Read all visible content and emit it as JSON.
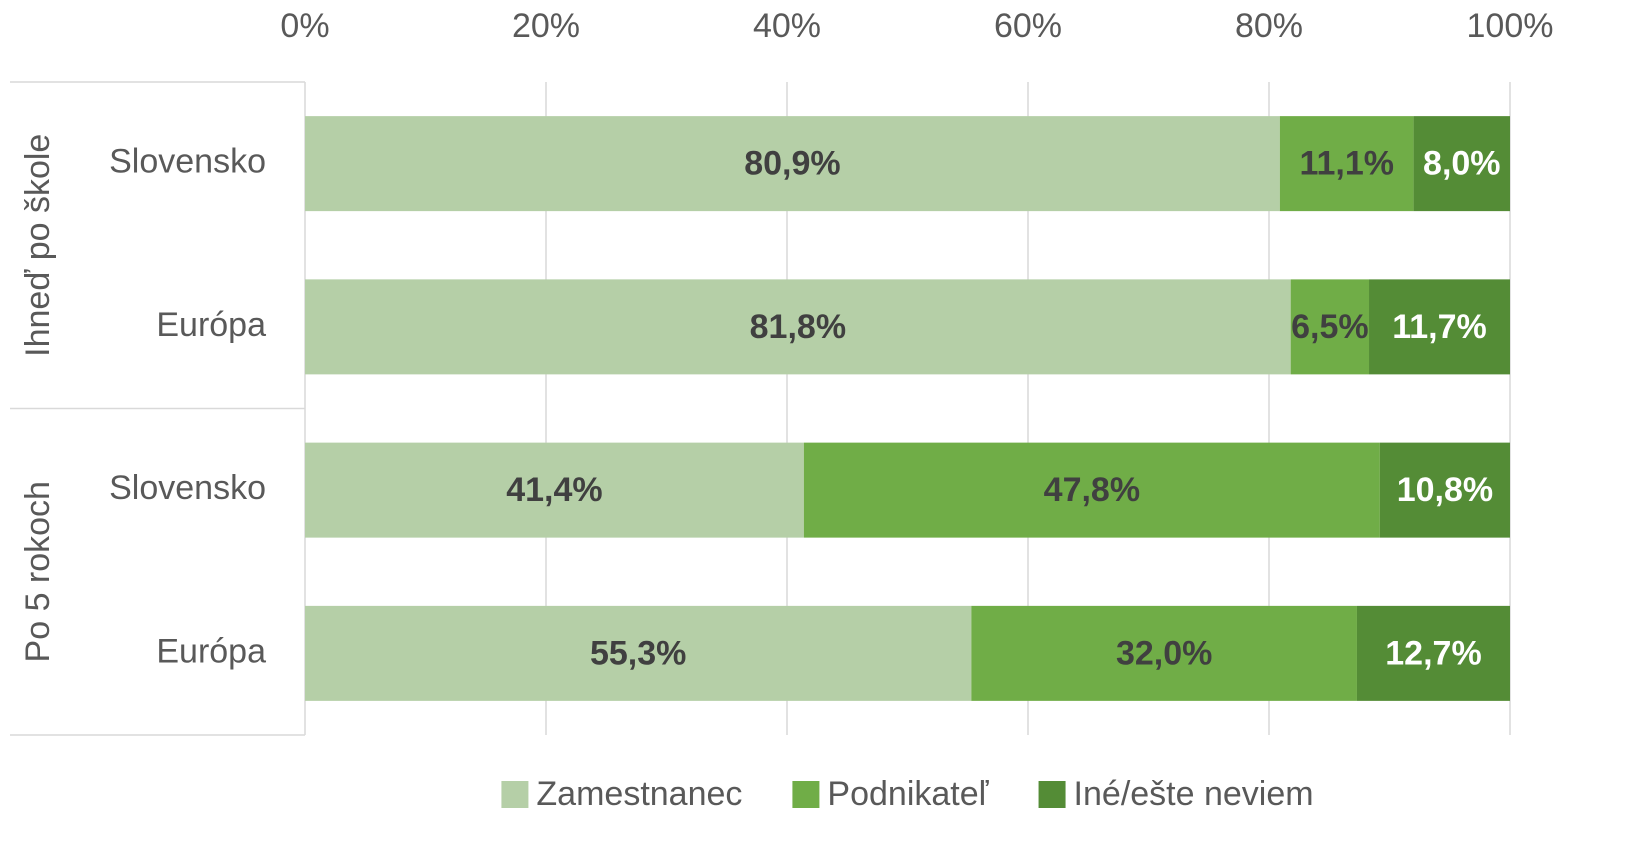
{
  "chart_data": {
    "type": "stacked-bar-horizontal",
    "groups": [
      {
        "label": "Ihneď po škole",
        "categories": [
          "Slovensko",
          "Európa"
        ]
      },
      {
        "label": "Po 5 rokoch",
        "categories": [
          "Slovensko",
          "Európa"
        ]
      }
    ],
    "series": [
      {
        "name": "Zamestnanec",
        "color": "#b5cfa7",
        "label_color": "#404040",
        "values": [
          80.9,
          81.8,
          41.4,
          55.3
        ],
        "value_labels": [
          "80,9%",
          "81,8%",
          "41,4%",
          "55,3%"
        ]
      },
      {
        "name": "Podnikateľ",
        "color": "#70ad47",
        "label_color": "#404040",
        "values": [
          11.1,
          6.5,
          47.8,
          32.0
        ],
        "value_labels": [
          "11,1%",
          "6,5%",
          "47,8%",
          "32,0%"
        ]
      },
      {
        "name": "Iné/ešte neviem",
        "color": "#548c36",
        "label_color": "#ffffff",
        "values": [
          8.0,
          11.7,
          10.8,
          12.7
        ],
        "value_labels": [
          "8,0%",
          "11,7%",
          "10,8%",
          "12,7%"
        ]
      }
    ],
    "xlim": [
      0,
      100
    ],
    "xticks": [
      {
        "value": 0,
        "label": "0%"
      },
      {
        "value": 20,
        "label": "20%"
      },
      {
        "value": 40,
        "label": "40%"
      },
      {
        "value": 60,
        "label": "60%"
      },
      {
        "value": 80,
        "label": "80%"
      },
      {
        "value": 100,
        "label": "100%"
      }
    ],
    "grid": true,
    "legend": "bottom"
  }
}
